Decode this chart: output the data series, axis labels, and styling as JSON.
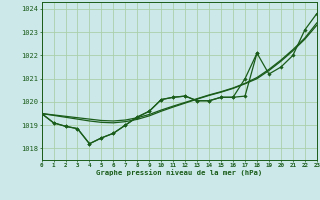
{
  "title": "Graphe pression niveau de la mer (hPa)",
  "bg_color": "#cce8e8",
  "grid_color": "#aacfaa",
  "line_color": "#1a5c1a",
  "xlim": [
    0,
    23
  ],
  "ylim": [
    1017.5,
    1024.3
  ],
  "yticks": [
    1018,
    1019,
    1020,
    1021,
    1022,
    1023,
    1024
  ],
  "xticks": [
    0,
    1,
    2,
    3,
    4,
    5,
    6,
    7,
    8,
    9,
    10,
    11,
    12,
    13,
    14,
    15,
    16,
    17,
    18,
    19,
    20,
    21,
    22,
    23
  ],
  "smooth1": [
    1019.5,
    1019.42,
    1019.34,
    1019.26,
    1019.18,
    1019.12,
    1019.1,
    1019.15,
    1019.25,
    1019.4,
    1019.6,
    1019.78,
    1019.95,
    1020.12,
    1020.28,
    1020.42,
    1020.58,
    1020.78,
    1021.0,
    1021.35,
    1021.75,
    1022.2,
    1022.7,
    1023.3
  ],
  "smooth2": [
    1019.5,
    1019.44,
    1019.38,
    1019.32,
    1019.26,
    1019.2,
    1019.18,
    1019.22,
    1019.32,
    1019.46,
    1019.65,
    1019.82,
    1019.98,
    1020.14,
    1020.3,
    1020.44,
    1020.6,
    1020.8,
    1021.05,
    1021.4,
    1021.8,
    1022.25,
    1022.75,
    1023.4
  ],
  "jagged1_x": [
    0,
    1,
    2,
    3,
    4,
    5,
    6,
    7,
    8,
    9,
    10,
    11,
    12,
    13,
    14,
    15,
    16,
    17,
    18,
    19,
    20,
    21,
    22,
    23
  ],
  "jagged1_y": [
    1019.5,
    1019.1,
    1018.95,
    1018.85,
    1018.2,
    1018.45,
    1018.65,
    1019.0,
    1019.35,
    1019.6,
    1020.1,
    1020.2,
    1020.25,
    1020.05,
    1020.05,
    1020.2,
    1020.2,
    1020.25,
    1022.1,
    1021.2,
    1021.5,
    1022.0,
    1023.1,
    1023.8
  ],
  "jagged2_x": [
    0,
    1,
    2,
    3,
    4,
    5,
    6,
    7,
    8,
    9,
    10,
    11,
    12,
    13,
    14,
    15,
    16,
    17,
    18
  ],
  "jagged2_y": [
    1019.5,
    1019.1,
    1018.95,
    1018.85,
    1018.2,
    1018.45,
    1018.65,
    1019.0,
    1019.35,
    1019.6,
    1020.1,
    1020.2,
    1020.25,
    1020.05,
    1020.05,
    1020.2,
    1020.2,
    1021.0,
    1022.1
  ]
}
